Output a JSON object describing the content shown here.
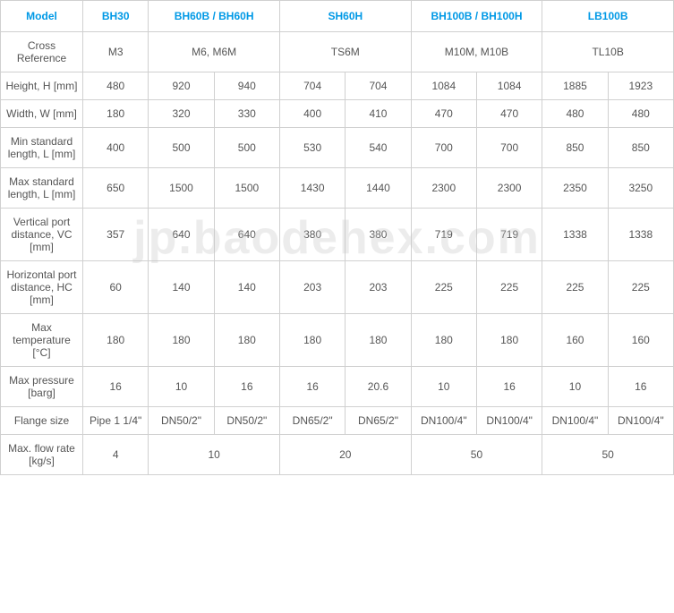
{
  "headers": [
    "Model",
    "BH30",
    "BH60B / BH60H",
    "SH60H",
    "BH100B / BH100H",
    "LB100B"
  ],
  "header_colspans": [
    1,
    1,
    2,
    2,
    2,
    2
  ],
  "rows": [
    {
      "label": "Cross Reference",
      "cells": [
        "M3",
        "M6, M6M",
        "TS6M",
        "M10M, M10B",
        "TL10B"
      ],
      "colspans": [
        1,
        2,
        2,
        2,
        2
      ]
    },
    {
      "label": "Height, H [mm]",
      "cells": [
        "480",
        "920",
        "940",
        "704",
        "704",
        "1084",
        "1084",
        "1885",
        "1923"
      ],
      "colspans": [
        1,
        1,
        1,
        1,
        1,
        1,
        1,
        1,
        1
      ]
    },
    {
      "label": "Width, W [mm]",
      "cells": [
        "180",
        "320",
        "330",
        "400",
        "410",
        "470",
        "470",
        "480",
        "480"
      ],
      "colspans": [
        1,
        1,
        1,
        1,
        1,
        1,
        1,
        1,
        1
      ]
    },
    {
      "label": "Min standard length, L [mm]",
      "cells": [
        "400",
        "500",
        "500",
        "530",
        "540",
        "700",
        "700",
        "850",
        "850"
      ],
      "colspans": [
        1,
        1,
        1,
        1,
        1,
        1,
        1,
        1,
        1
      ]
    },
    {
      "label": "Max standard length, L [mm]",
      "cells": [
        "650",
        "1500",
        "1500",
        "1430",
        "1440",
        "2300",
        "2300",
        "2350",
        "3250"
      ],
      "colspans": [
        1,
        1,
        1,
        1,
        1,
        1,
        1,
        1,
        1
      ]
    },
    {
      "label": "Vertical port distance, VC [mm]",
      "cells": [
        "357",
        "640",
        "640",
        "380",
        "380",
        "719",
        "719",
        "1338",
        "1338"
      ],
      "colspans": [
        1,
        1,
        1,
        1,
        1,
        1,
        1,
        1,
        1
      ]
    },
    {
      "label": "Horizontal port distance, HC [mm]",
      "cells": [
        "60",
        "140",
        "140",
        "203",
        "203",
        "225",
        "225",
        "225",
        "225"
      ],
      "colspans": [
        1,
        1,
        1,
        1,
        1,
        1,
        1,
        1,
        1
      ]
    },
    {
      "label": "Max temperature [°C]",
      "cells": [
        "180",
        "180",
        "180",
        "180",
        "180",
        "180",
        "180",
        "160",
        "160"
      ],
      "colspans": [
        1,
        1,
        1,
        1,
        1,
        1,
        1,
        1,
        1
      ]
    },
    {
      "label": "Max pressure [barg]",
      "cells": [
        "16",
        "10",
        "16",
        "16",
        "20.6",
        "10",
        "16",
        "10",
        "16"
      ],
      "colspans": [
        1,
        1,
        1,
        1,
        1,
        1,
        1,
        1,
        1
      ]
    },
    {
      "label": "Flange size",
      "cells": [
        "Pipe 1 1/4\"",
        "DN50/2\"",
        "DN50/2\"",
        "DN65/2\"",
        "DN65/2\"",
        "DN100/4\"",
        "DN100/4\"",
        "DN100/4\"",
        "DN100/4\""
      ],
      "colspans": [
        1,
        1,
        1,
        1,
        1,
        1,
        1,
        1,
        1
      ]
    },
    {
      "label": "Max. flow rate [kg/s]",
      "cells": [
        "4",
        "10",
        "20",
        "50",
        "50"
      ],
      "colspans": [
        1,
        2,
        2,
        2,
        2
      ]
    }
  ],
  "watermark": "jp.baodehex.com"
}
